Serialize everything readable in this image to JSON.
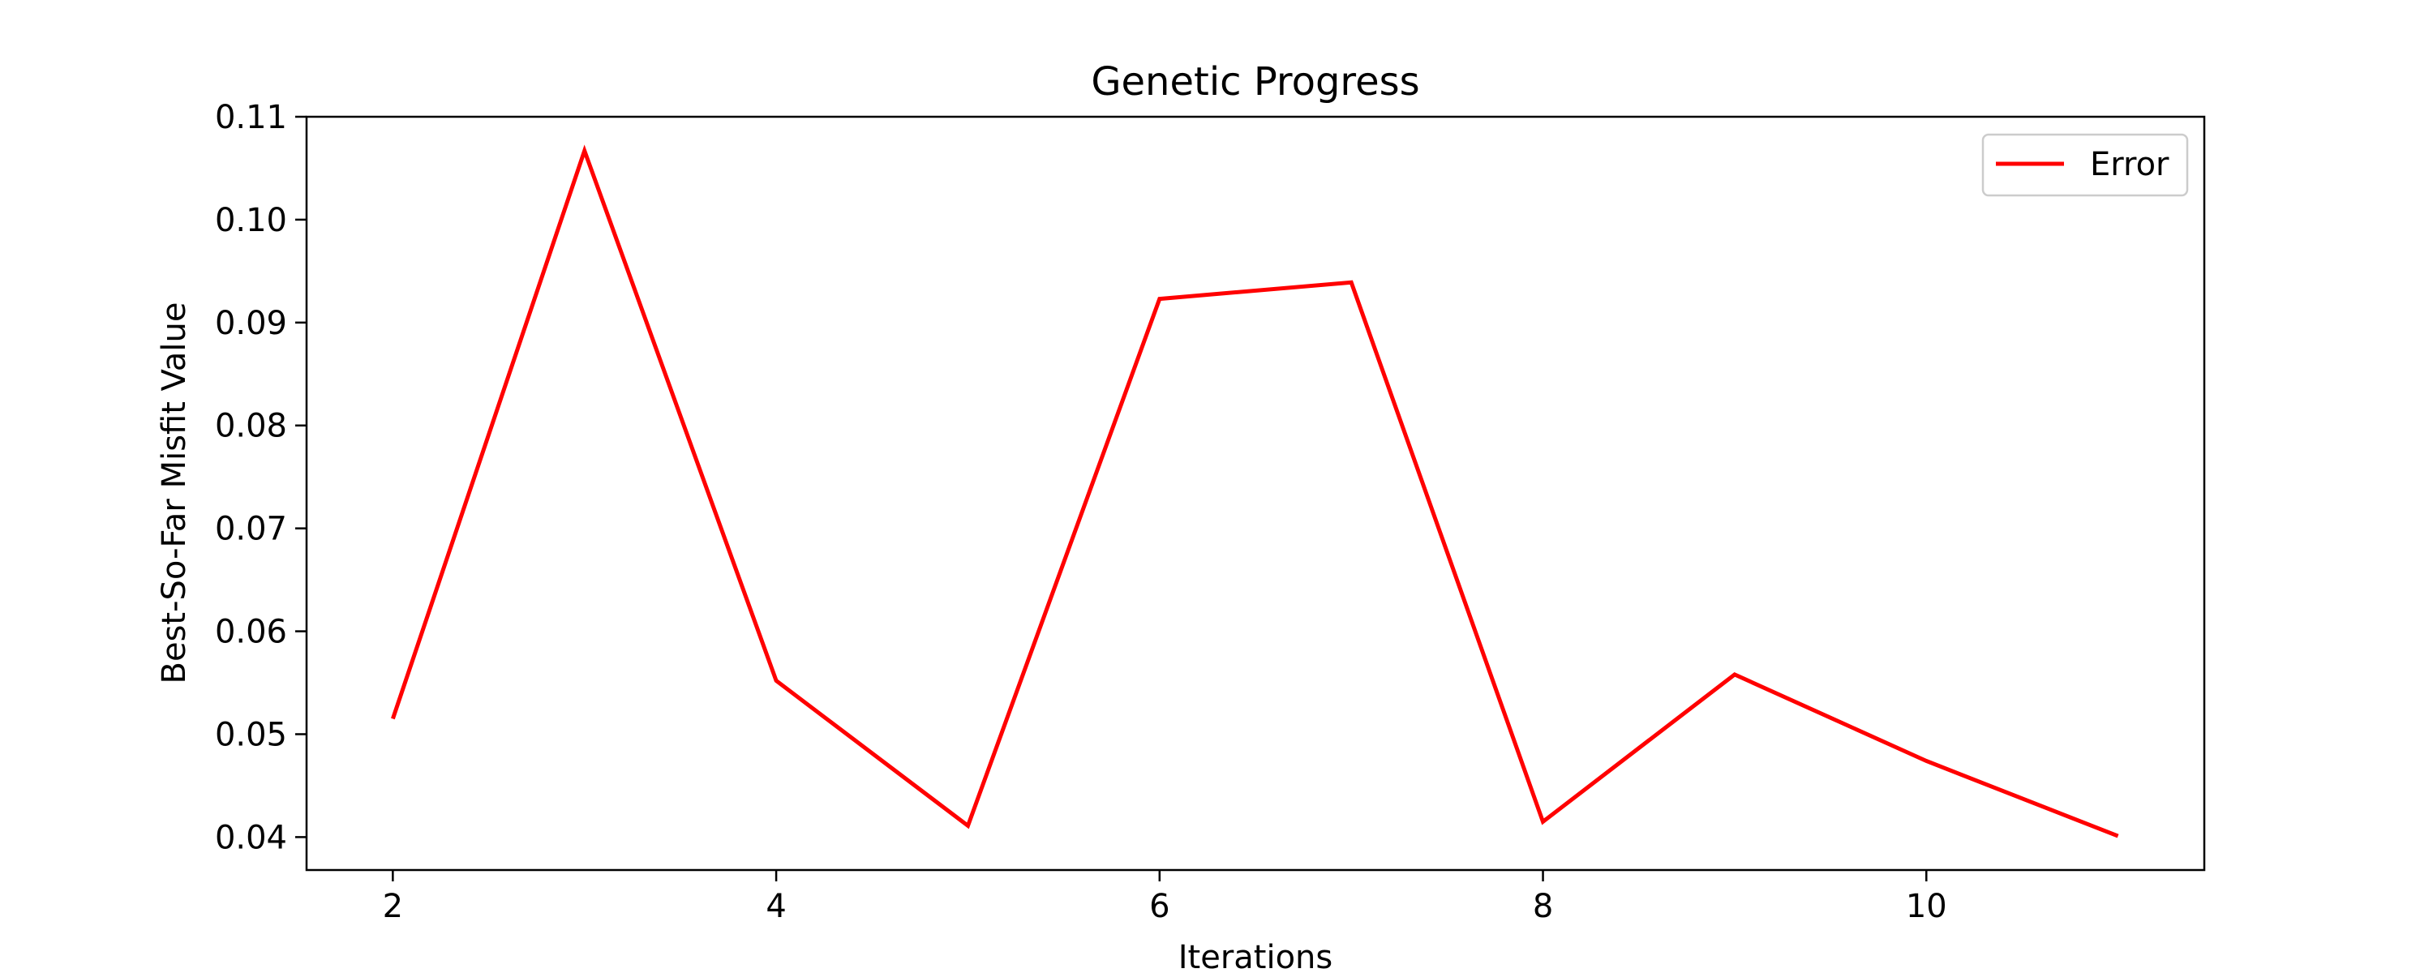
{
  "chart_data": {
    "type": "line",
    "title": "Genetic Progress",
    "xlabel": "Iterations",
    "ylabel": "Best-So-Far Misfit Value",
    "x": [
      2,
      3,
      4,
      5,
      6,
      7,
      8,
      9,
      10,
      11
    ],
    "series": [
      {
        "name": "Error",
        "color": "#ff0000",
        "values": [
          0.0515,
          0.1067,
          0.0552,
          0.0411,
          0.0923,
          0.0939,
          0.0415,
          0.0558,
          0.0474,
          0.0401
        ]
      }
    ],
    "xlim": [
      1.55,
      11.45
    ],
    "ylim": [
      0.0368,
      0.11
    ],
    "xticks": [
      2,
      4,
      6,
      8,
      10
    ],
    "xtick_labels": [
      "2",
      "4",
      "6",
      "8",
      "10"
    ],
    "yticks": [
      0.04,
      0.05,
      0.06,
      0.07,
      0.08,
      0.09,
      0.1,
      0.11
    ],
    "ytick_labels": [
      "0.04",
      "0.05",
      "0.06",
      "0.07",
      "0.08",
      "0.09",
      "0.10",
      "0.11"
    ],
    "grid": false,
    "legend_position": "top-right"
  }
}
